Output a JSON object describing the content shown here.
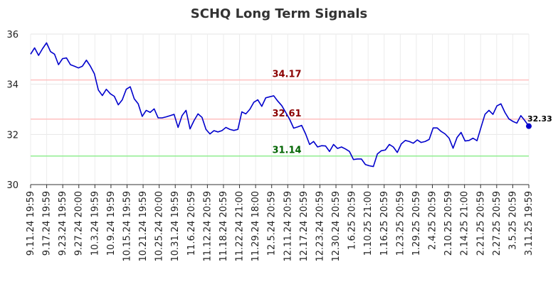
{
  "chart_data": {
    "type": "line",
    "title": "SCHQ Long Term Signals",
    "xlabel": "",
    "ylabel": "",
    "ylim": [
      30,
      36
    ],
    "yticks": [
      30,
      32,
      34,
      36
    ],
    "grid": true,
    "x_tick_labels": [
      "9.11.24 19:59",
      "9.17.24 19:59",
      "9.23.24 19:59",
      "9.27.24 20:00",
      "10.3.24 19:59",
      "10.9.24 19:59",
      "10.15.24 19:59",
      "10.21.24 19:59",
      "10.25.24 20:00",
      "10.31.24 19:59",
      "11.6.24 20:59",
      "11.12.24 20:59",
      "11.18.24 20:59",
      "11.22.24 21:00",
      "11.29.24 18:00",
      "12.5.24 20:59",
      "12.11.24 20:59",
      "12.17.24 20:59",
      "12.23.24 20:59",
      "12.30.24 20:59",
      "1.6.25 20:59",
      "1.10.25 21:00",
      "1.16.25 20:59",
      "1.23.25 20:59",
      "1.29.25 20:59",
      "2.4.25 20:59",
      "2.10.25 20:59",
      "2.14.25 21:00",
      "2.21.25 20:59",
      "2.27.25 20:59",
      "3.5.25 20:59",
      "3.11.25 19:59"
    ],
    "series": [
      {
        "color": "#0000cc",
        "values": [
          35.2,
          35.45,
          35.15,
          35.42,
          35.65,
          35.3,
          35.2,
          34.78,
          35.02,
          35.05,
          34.78,
          34.72,
          34.65,
          34.72,
          34.96,
          34.72,
          34.42,
          33.77,
          33.55,
          33.8,
          33.62,
          33.52,
          33.18,
          33.38,
          33.8,
          33.9,
          33.42,
          33.22,
          32.72,
          32.96,
          32.88,
          33.02,
          32.66,
          32.66,
          32.7,
          32.75,
          32.8,
          32.28,
          32.75,
          32.96,
          32.22,
          32.55,
          32.82,
          32.68,
          32.2,
          32.02,
          32.15,
          32.1,
          32.15,
          32.28,
          32.2,
          32.16,
          32.2,
          32.9,
          32.82,
          33.0,
          33.28,
          33.38,
          33.12,
          33.46,
          33.5,
          33.54,
          33.33,
          33.15,
          32.88,
          32.6,
          32.25,
          32.3,
          32.36,
          32.02,
          31.6,
          31.72,
          31.5,
          31.55,
          31.54,
          31.32,
          31.6,
          31.44,
          31.5,
          31.42,
          31.32,
          31.0,
          31.02,
          31.02,
          30.8,
          30.75,
          30.72,
          31.22,
          31.35,
          31.38,
          31.6,
          31.5,
          31.28,
          31.62,
          31.76,
          31.72,
          31.65,
          31.78,
          31.68,
          31.72,
          31.8,
          32.26,
          32.26,
          32.12,
          32.02,
          31.85,
          31.45,
          31.88,
          32.08,
          31.74,
          31.76,
          31.85,
          31.75,
          32.28,
          32.8,
          32.96,
          32.8,
          33.14,
          33.22,
          32.88,
          32.62,
          32.52,
          32.45,
          32.75,
          32.55,
          32.33
        ]
      }
    ],
    "reference_lines": [
      {
        "value": 34.17,
        "label": "34.17",
        "line_color": "#ffc0c0",
        "text_color": "#8b0000"
      },
      {
        "value": 32.61,
        "label": "32.61",
        "line_color": "#ffc0c0",
        "text_color": "#8b0000"
      },
      {
        "value": 31.14,
        "label": "31.14",
        "line_color": "#90ee90",
        "text_color": "#006400"
      }
    ],
    "last_value_label": "32.33"
  }
}
